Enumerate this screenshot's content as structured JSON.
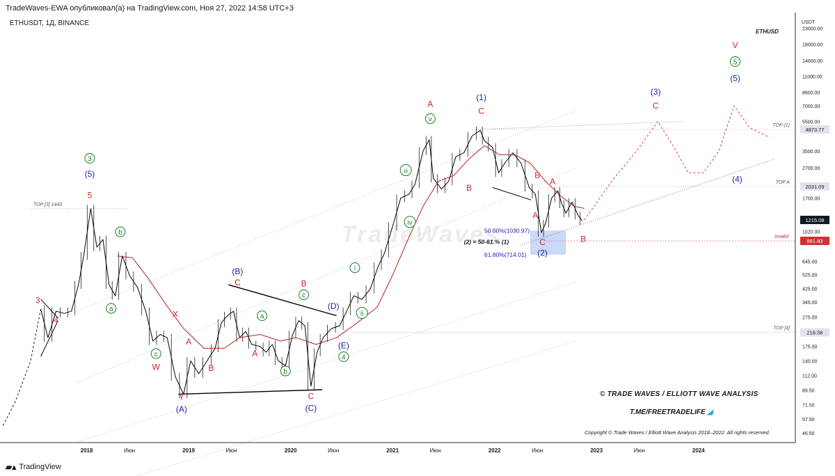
{
  "header": {
    "publisher_line": "TradeWaves-EWA опубликовал(а) на TradingView.com, Ноя 27, 2022 14:58 UTC+3",
    "symbol_line": "ETHUSDT, 1Д, BINANCE",
    "chart_label": "ETHUSD"
  },
  "footer": {
    "brand": "© TRADE WAVES / ELLIOTT WAVE ANALYSIS",
    "telegram": "T.ME/FREETRADELIFE",
    "copyright": "Copyright © Trade Waves / Elliott Wave Analysis 2018–2022. All rights reserved.",
    "tv_logo": "TradingView",
    "watermark": "TradeWaves"
  },
  "colors": {
    "price": "#000000",
    "ma": "#b22222",
    "blue_label": "#1e22aa",
    "red_label": "#c62828",
    "green_label": "#1b7a2b",
    "projection": "#e53935",
    "fib_zone": "#bcd0f5"
  },
  "chart_data": {
    "type": "line",
    "title": "ETHUSDT, 1Д, BINANCE",
    "y_scale": "log",
    "ylim": [
      40,
      28000
    ],
    "xlim": [
      2017.15,
      2024.95
    ],
    "x_ticks": [
      {
        "x": 2018.0,
        "label": "2018"
      },
      {
        "x": 2018.42,
        "label": "Июн"
      },
      {
        "x": 2019.0,
        "label": "2019"
      },
      {
        "x": 2019.42,
        "label": "Июн"
      },
      {
        "x": 2020.0,
        "label": "2020"
      },
      {
        "x": 2020.42,
        "label": "Июн"
      },
      {
        "x": 2021.0,
        "label": "2021"
      },
      {
        "x": 2021.42,
        "label": "Июн"
      },
      {
        "x": 2022.0,
        "label": "2022"
      },
      {
        "x": 2022.42,
        "label": "Июн"
      },
      {
        "x": 2023.0,
        "label": "2023"
      },
      {
        "x": 2023.42,
        "label": "Июн"
      },
      {
        "x": 2024.0,
        "label": "2024"
      }
    ],
    "y_axis_unit": "USDT",
    "y_ticks": [
      {
        "v": 23000,
        "label": "23000.00"
      },
      {
        "v": 18000,
        "label": "18000.00"
      },
      {
        "v": 14000,
        "label": "14000.00"
      },
      {
        "v": 11000,
        "label": "11000.00"
      },
      {
        "v": 8600,
        "label": "8600.00"
      },
      {
        "v": 7000,
        "label": "7000.00"
      },
      {
        "v": 5500,
        "label": "5500.00"
      },
      {
        "v": 3500,
        "label": "3500.00"
      },
      {
        "v": 2700,
        "label": "2700.00"
      },
      {
        "v": 1700,
        "label": "1700.00"
      },
      {
        "v": 1020,
        "label": "1020.00"
      },
      {
        "v": 645,
        "label": "645.00"
      },
      {
        "v": 525,
        "label": "525.00"
      },
      {
        "v": 425,
        "label": "425.00"
      },
      {
        "v": 345,
        "label": "345.00"
      },
      {
        "v": 275,
        "label": "275.00"
      },
      {
        "v": 175,
        "label": "175.00"
      },
      {
        "v": 140,
        "label": "140.00"
      },
      {
        "v": 112,
        "label": "112.00"
      },
      {
        "v": 89.5,
        "label": "89.50"
      },
      {
        "v": 71.5,
        "label": "71.50"
      },
      {
        "v": 57.5,
        "label": "57.50"
      },
      {
        "v": 46.5,
        "label": "46.50"
      }
    ],
    "price_badges": [
      {
        "v": 4873.77,
        "label": "4873.77",
        "style": "grey"
      },
      {
        "v": 2031.09,
        "label": "2031.09",
        "style": "grey"
      },
      {
        "v": 1215.08,
        "label": "1215.08",
        "style": "dark"
      },
      {
        "v": 881.83,
        "label": "881.83",
        "style": "red"
      },
      {
        "v": 216.58,
        "label": "216.58",
        "style": "grey"
      }
    ],
    "series": [
      {
        "name": "ETHUSDT price",
        "points": [
          [
            2017.55,
            310
          ],
          [
            2017.62,
            200
          ],
          [
            2017.7,
            300
          ],
          [
            2017.78,
            290
          ],
          [
            2017.85,
            300
          ],
          [
            2017.92,
            450
          ],
          [
            2017.97,
            700
          ],
          [
            2018.04,
            1443
          ],
          [
            2018.1,
            800
          ],
          [
            2018.16,
            900
          ],
          [
            2018.22,
            450
          ],
          [
            2018.28,
            380
          ],
          [
            2018.35,
            700
          ],
          [
            2018.42,
            520
          ],
          [
            2018.5,
            430
          ],
          [
            2018.58,
            300
          ],
          [
            2018.65,
            190
          ],
          [
            2018.72,
            210
          ],
          [
            2018.79,
            200
          ],
          [
            2018.87,
            110
          ],
          [
            2018.95,
            84
          ],
          [
            2019.02,
            140
          ],
          [
            2019.1,
            115
          ],
          [
            2019.18,
            140
          ],
          [
            2019.26,
            170
          ],
          [
            2019.32,
            250
          ],
          [
            2019.38,
            280
          ],
          [
            2019.44,
            300
          ],
          [
            2019.5,
            200
          ],
          [
            2019.56,
            220
          ],
          [
            2019.62,
            180
          ],
          [
            2019.7,
            175
          ],
          [
            2019.76,
            160
          ],
          [
            2019.82,
            180
          ],
          [
            2019.88,
            140
          ],
          [
            2019.95,
            130
          ],
          [
            2020.02,
            210
          ],
          [
            2020.08,
            260
          ],
          [
            2020.14,
            240
          ],
          [
            2020.2,
            95
          ],
          [
            2020.26,
            160
          ],
          [
            2020.32,
            200
          ],
          [
            2020.4,
            230
          ],
          [
            2020.48,
            240
          ],
          [
            2020.55,
            300
          ],
          [
            2020.62,
            380
          ],
          [
            2020.7,
            360
          ],
          [
            2020.78,
            420
          ],
          [
            2020.86,
            600
          ],
          [
            2020.92,
            730
          ],
          [
            2021.0,
            1100
          ],
          [
            2021.08,
            1700
          ],
          [
            2021.16,
            1800
          ],
          [
            2021.22,
            2100
          ],
          [
            2021.3,
            3500
          ],
          [
            2021.36,
            4150
          ],
          [
            2021.4,
            2300
          ],
          [
            2021.48,
            1950
          ],
          [
            2021.55,
            2200
          ],
          [
            2021.62,
            3200
          ],
          [
            2021.7,
            3400
          ],
          [
            2021.78,
            4400
          ],
          [
            2021.86,
            4800
          ],
          [
            2021.9,
            4100
          ],
          [
            2021.98,
            3700
          ],
          [
            2022.04,
            2500
          ],
          [
            2022.1,
            2900
          ],
          [
            2022.18,
            3400
          ],
          [
            2022.26,
            2900
          ],
          [
            2022.34,
            2000
          ],
          [
            2022.4,
            1800
          ],
          [
            2022.46,
            1000
          ],
          [
            2022.5,
            1150
          ],
          [
            2022.56,
            1700
          ],
          [
            2022.62,
            1900
          ],
          [
            2022.66,
            1550
          ],
          [
            2022.7,
            1350
          ],
          [
            2022.76,
            1600
          ],
          [
            2022.82,
            1300
          ],
          [
            2022.86,
            1200
          ]
        ]
      },
      {
        "name": "Moving average",
        "points": [
          [
            2018.3,
            700
          ],
          [
            2018.45,
            680
          ],
          [
            2018.6,
            500
          ],
          [
            2018.78,
            330
          ],
          [
            2018.95,
            230
          ],
          [
            2019.15,
            170
          ],
          [
            2019.35,
            170
          ],
          [
            2019.5,
            200
          ],
          [
            2019.7,
            210
          ],
          [
            2019.9,
            190
          ],
          [
            2020.05,
            200
          ],
          [
            2020.25,
            180
          ],
          [
            2020.45,
            200
          ],
          [
            2020.65,
            250
          ],
          [
            2020.85,
            320
          ],
          [
            2021.0,
            520
          ],
          [
            2021.15,
            900
          ],
          [
            2021.3,
            1500
          ],
          [
            2021.45,
            2200
          ],
          [
            2021.6,
            2400
          ],
          [
            2021.75,
            3100
          ],
          [
            2021.9,
            3800
          ],
          [
            2022.05,
            3300
          ],
          [
            2022.2,
            3300
          ],
          [
            2022.35,
            2900
          ],
          [
            2022.5,
            2200
          ],
          [
            2022.65,
            1750
          ],
          [
            2022.78,
            1500
          ],
          [
            2022.88,
            1450
          ]
        ]
      },
      {
        "name": "Projection",
        "style": "dashed",
        "points": [
          [
            2022.88,
            1215
          ],
          [
            2023.15,
            2200
          ],
          [
            2023.42,
            3700
          ],
          [
            2023.6,
            5500
          ],
          [
            2023.75,
            3800
          ],
          [
            2023.9,
            2500
          ],
          [
            2024.05,
            2500
          ],
          [
            2024.2,
            3500
          ],
          [
            2024.35,
            7000
          ],
          [
            2024.5,
            5000
          ],
          [
            2024.7,
            4300
          ]
        ]
      },
      {
        "name": "Early lead-in",
        "style": "dashed",
        "points": [
          [
            2017.18,
            52
          ],
          [
            2017.3,
            75
          ],
          [
            2017.45,
            140
          ],
          [
            2017.55,
            310
          ]
        ]
      }
    ],
    "reference_lines": [
      {
        "label": "TOP [3] 1443",
        "value": 1443,
        "x_from": 2017.45,
        "x_to": 2018.4
      },
      {
        "label": "TOP (1)",
        "value": 4873.77,
        "x_from": 2021.8,
        "x_to": 2024.95
      },
      {
        "label": "TOP A",
        "value": 2031.09,
        "x_from": 2022.66,
        "x_to": 2024.95
      },
      {
        "label": "TOP [4]",
        "value": 216.58,
        "x_from": 2020.6,
        "x_to": 2024.95
      },
      {
        "label": "invalid.",
        "value": 881.83,
        "x_from": 2022.5,
        "x_to": 2024.95
      }
    ],
    "fib_zone": {
      "from_value": 1030.97,
      "to_value": 714.01,
      "x_from": 2022.35,
      "x_to": 2022.7
    },
    "fib_labels": [
      {
        "text": "50.00%(1030.97)",
        "x": 2021.9,
        "v": 1030.97
      },
      {
        "text": "61.80%(714.01)",
        "x": 2021.9,
        "v": 714.01
      },
      {
        "text": "(2) = 50-61.% (1)",
        "x": 2021.7,
        "v": 870
      }
    ],
    "wave_labels": [
      {
        "text": "3",
        "x": 2017.52,
        "v": 340,
        "color": "red"
      },
      {
        "text": "4",
        "x": 2017.7,
        "v": 250,
        "color": "red"
      },
      {
        "text": "5",
        "x": 2018.03,
        "v": 1700,
        "color": "red"
      },
      {
        "text": "(5)",
        "x": 2018.03,
        "v": 2350,
        "color": "blue"
      },
      {
        "text": "3",
        "x": 2018.03,
        "v": 3000,
        "color": "green",
        "circled": true
      },
      {
        "text": "b",
        "x": 2018.33,
        "v": 970,
        "color": "green",
        "circled": true
      },
      {
        "text": "a",
        "x": 2018.24,
        "v": 300,
        "color": "green",
        "circled": true
      },
      {
        "text": "X",
        "x": 2018.87,
        "v": 275,
        "color": "red"
      },
      {
        "text": "c",
        "x": 2018.68,
        "v": 150,
        "color": "green",
        "circled": true
      },
      {
        "text": "W",
        "x": 2018.68,
        "v": 122,
        "color": "red"
      },
      {
        "text": "A",
        "x": 2019.0,
        "v": 180,
        "color": "red"
      },
      {
        "text": "B",
        "x": 2019.22,
        "v": 120,
        "color": "red"
      },
      {
        "text": "Y",
        "x": 2018.93,
        "v": 77,
        "color": "red"
      },
      {
        "text": "(A)",
        "x": 2018.93,
        "v": 64,
        "color": "blue"
      },
      {
        "text": "(B)",
        "x": 2019.48,
        "v": 530,
        "color": "blue"
      },
      {
        "text": "C",
        "x": 2019.48,
        "v": 445,
        "color": "red"
      },
      {
        "text": "a",
        "x": 2019.72,
        "v": 268,
        "color": "green",
        "circled": true
      },
      {
        "text": "A",
        "x": 2019.65,
        "v": 150,
        "color": "red"
      },
      {
        "text": "B",
        "x": 2020.13,
        "v": 440,
        "color": "red"
      },
      {
        "text": "c",
        "x": 2020.13,
        "v": 370,
        "color": "green",
        "circled": true
      },
      {
        "text": "b",
        "x": 2019.95,
        "v": 115,
        "color": "green",
        "circled": true
      },
      {
        "text": "C",
        "x": 2020.2,
        "v": 78,
        "color": "red"
      },
      {
        "text": "(C)",
        "x": 2020.2,
        "v": 65,
        "color": "blue"
      },
      {
        "text": "(D)",
        "x": 2020.42,
        "v": 310,
        "color": "blue"
      },
      {
        "text": "(E)",
        "x": 2020.52,
        "v": 170,
        "color": "blue"
      },
      {
        "text": "4",
        "x": 2020.52,
        "v": 143,
        "color": "green",
        "circled": true
      },
      {
        "text": "ii",
        "x": 2020.7,
        "v": 280,
        "color": "green",
        "circled": true
      },
      {
        "text": "i",
        "x": 2020.63,
        "v": 560,
        "color": "green",
        "circled": true
      },
      {
        "text": "iii",
        "x": 2021.13,
        "v": 2500,
        "color": "green",
        "circled": true
      },
      {
        "text": "iv",
        "x": 2021.17,
        "v": 1130,
        "color": "green",
        "circled": true
      },
      {
        "text": "v",
        "x": 2021.37,
        "v": 5500,
        "color": "green",
        "circled": true
      },
      {
        "text": "A",
        "x": 2021.37,
        "v": 6900,
        "color": "red"
      },
      {
        "text": "B",
        "x": 2021.75,
        "v": 1900,
        "color": "red"
      },
      {
        "text": "(1)",
        "x": 2021.87,
        "v": 7600,
        "color": "blue"
      },
      {
        "text": "C",
        "x": 2021.87,
        "v": 6200,
        "color": "red"
      },
      {
        "text": "B",
        "x": 2022.42,
        "v": 2300,
        "color": "red"
      },
      {
        "text": "A",
        "x": 2022.57,
        "v": 2100,
        "color": "red"
      },
      {
        "text": "A",
        "x": 2022.4,
        "v": 1250,
        "color": "red"
      },
      {
        "text": "C",
        "x": 2022.47,
        "v": 830,
        "color": "red"
      },
      {
        "text": "(2)",
        "x": 2022.47,
        "v": 700,
        "color": "blue"
      },
      {
        "text": "B",
        "x": 2022.87,
        "v": 870,
        "color": "red"
      },
      {
        "text": "(3)",
        "x": 2023.58,
        "v": 8300,
        "color": "blue"
      },
      {
        "text": "C",
        "x": 2023.58,
        "v": 6700,
        "color": "red"
      },
      {
        "text": "(4)",
        "x": 2024.38,
        "v": 2180,
        "color": "blue"
      },
      {
        "text": "V",
        "x": 2024.36,
        "v": 17000,
        "color": "red"
      },
      {
        "text": "5",
        "x": 2024.36,
        "v": 13200,
        "color": "green",
        "circled": true
      },
      {
        "text": "(5)",
        "x": 2024.36,
        "v": 10200,
        "color": "blue"
      }
    ]
  }
}
